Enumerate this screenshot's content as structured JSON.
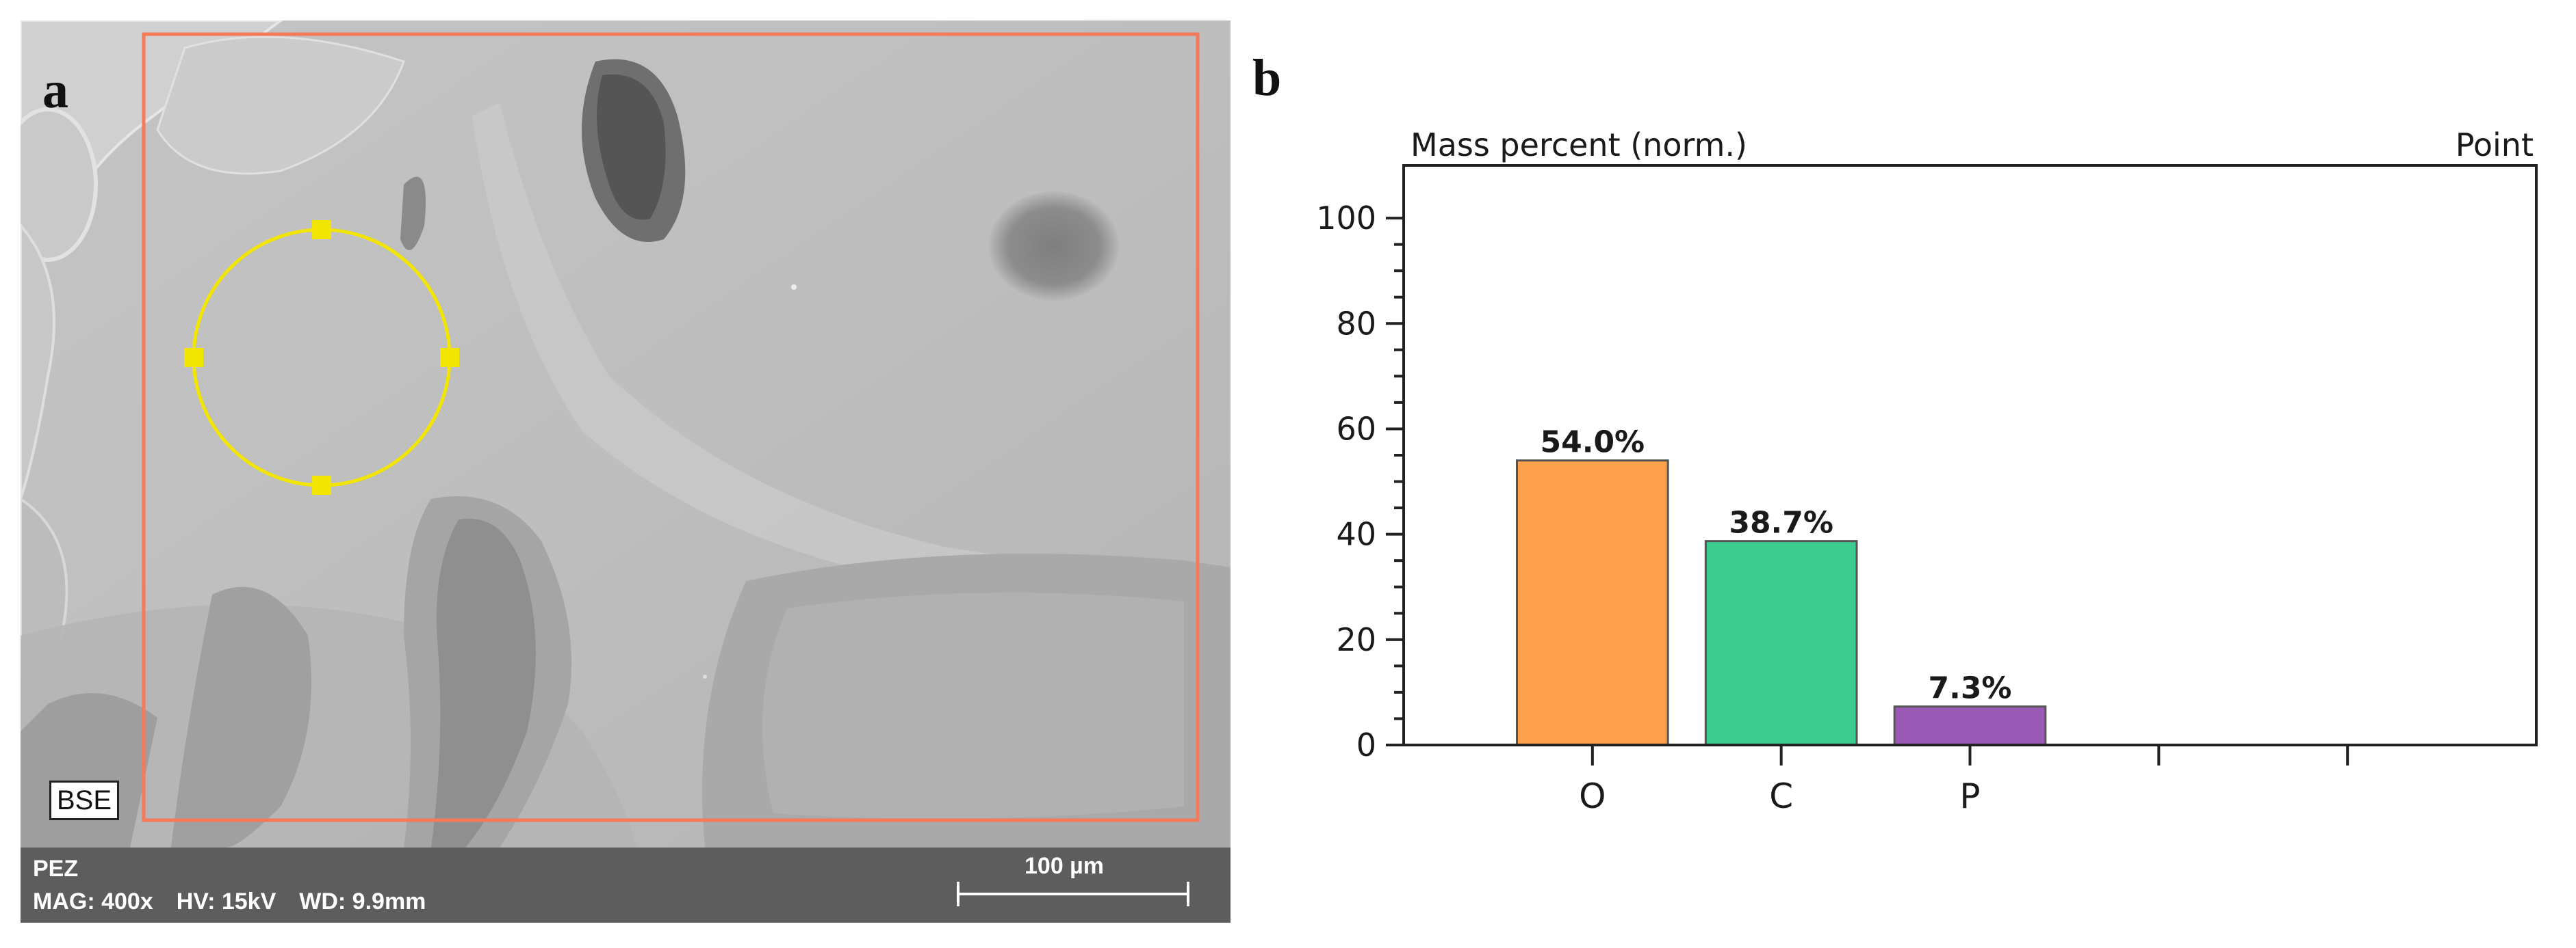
{
  "panel_a": {
    "letter": "a",
    "detector": "BSE",
    "sample": "PEZ",
    "magnification": "MAG: 400x",
    "voltage": "HV: 15kV",
    "working_distance": "WD: 9.9mm",
    "scale_bar_label": "100 µm",
    "colors": {
      "roi_rectangle": "#f47a5a",
      "roi_circle": "#f2e600",
      "info_bar": "#5d5d5d"
    }
  },
  "panel_b": {
    "letter": "b"
  },
  "chart_data": {
    "type": "bar",
    "title": "Mass percent (norm.)",
    "mode_label": "Point",
    "xlabel": "",
    "ylabel": "",
    "categories": [
      "O",
      "C",
      "P"
    ],
    "values": [
      54.0,
      38.7,
      7.3
    ],
    "value_labels": [
      "54.0%",
      "38.7%",
      "7.3%"
    ],
    "colors": [
      "#ffa04d",
      "#3dcc8f",
      "#9b59b6"
    ],
    "ylim": [
      0,
      110
    ],
    "yticks": [
      0,
      20,
      40,
      60,
      80,
      100
    ],
    "empty_slots": 2,
    "grid": false,
    "legend": "none"
  }
}
